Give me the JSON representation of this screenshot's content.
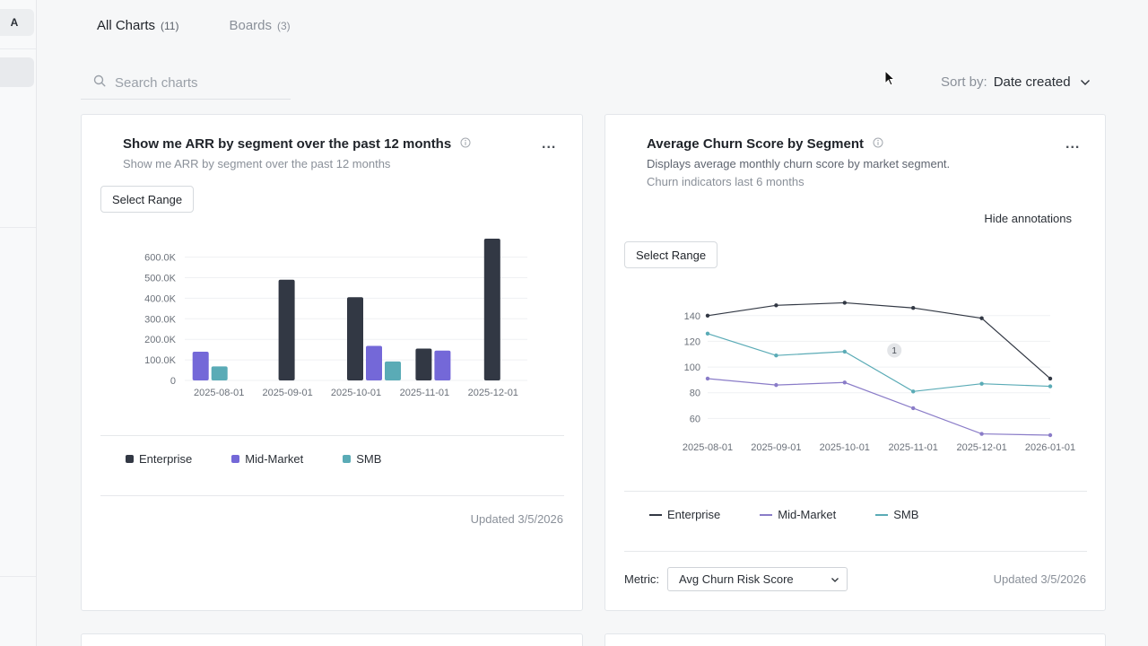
{
  "sidebar": {
    "avatar_letter": "A"
  },
  "tabs": [
    {
      "label": "All Charts",
      "count": "(11)"
    },
    {
      "label": "Boards",
      "count": "(3)"
    }
  ],
  "search": {
    "placeholder": "Search charts",
    "value": ""
  },
  "sort": {
    "label": "Sort by:",
    "value": "Date created"
  },
  "cards": [
    {
      "title": "Show me ARR by segment over the past 12 months",
      "subtitle": "Show me ARR by segment over the past 12 months",
      "select_range_label": "Select Range",
      "more_label": "...",
      "updated": "Updated 3/5/2026",
      "legend": [
        {
          "label": "Enterprise",
          "color": "#323844"
        },
        {
          "label": "Mid-Market",
          "color": "#7468d8"
        },
        {
          "label": "SMB",
          "color": "#5aabb6"
        }
      ]
    },
    {
      "title": "Average Churn Score by Segment",
      "subtitle": "Displays average monthly churn score by market segment.",
      "subtitle2": "Churn indicators last 6 months",
      "hide_annotations_label": "Hide annotations",
      "select_range_label": "Select Range",
      "more_label": "...",
      "metric_label": "Metric:",
      "metric_value": "Avg Churn Risk Score",
      "updated": "Updated 3/5/2026",
      "annotation_marker": "1",
      "legend": [
        {
          "label": "Enterprise",
          "color": "#323844"
        },
        {
          "label": "Mid-Market",
          "color": "#8a7cc8"
        },
        {
          "label": "SMB",
          "color": "#5aabb6"
        }
      ]
    }
  ],
  "chart_data": [
    {
      "type": "bar",
      "title": "Show me ARR by segment over the past 12 months",
      "categories": [
        "2025-08-01",
        "2025-09-01",
        "2025-10-01",
        "2025-11-01",
        "2025-12-01"
      ],
      "series": [
        {
          "name": "Enterprise",
          "color": "#323844",
          "values": [
            0,
            490000,
            405000,
            155000,
            690000
          ]
        },
        {
          "name": "Mid-Market",
          "color": "#7468d8",
          "values": [
            140000,
            0,
            168000,
            145000,
            0
          ]
        },
        {
          "name": "SMB",
          "color": "#5aabb6",
          "values": [
            68000,
            0,
            92000,
            0,
            0
          ]
        }
      ],
      "yticks": [
        0,
        100000,
        200000,
        300000,
        400000,
        500000,
        600000
      ],
      "ytick_labels": [
        "0",
        "100.0K",
        "200.0K",
        "300.0K",
        "400.0K",
        "500.0K",
        "600.0K"
      ],
      "ylim": [
        0,
        690000
      ],
      "xlabel": "",
      "ylabel": "",
      "grid": true
    },
    {
      "type": "line",
      "title": "Average Churn Score by Segment",
      "categories": [
        "2025-08-01",
        "2025-09-01",
        "2025-10-01",
        "2025-11-01",
        "2025-12-01",
        "2026-01-01"
      ],
      "series": [
        {
          "name": "Enterprise",
          "color": "#323844",
          "values": [
            140,
            148,
            150,
            146,
            138,
            91
          ]
        },
        {
          "name": "Mid-Market",
          "color": "#8a7cc8",
          "values": [
            91,
            86,
            88,
            68,
            48,
            47
          ]
        },
        {
          "name": "SMB",
          "color": "#5aabb6",
          "values": [
            126,
            109,
            112,
            81,
            87,
            85
          ]
        }
      ],
      "yticks": [
        60,
        80,
        100,
        120,
        140
      ],
      "ytick_labels": [
        "60",
        "80",
        "100",
        "120",
        "140"
      ],
      "ylim": [
        47,
        158
      ],
      "annotations": [
        {
          "label": "1",
          "x": "2025-11-01",
          "y": 113
        }
      ],
      "xlabel": "",
      "ylabel": "",
      "grid": true
    }
  ]
}
